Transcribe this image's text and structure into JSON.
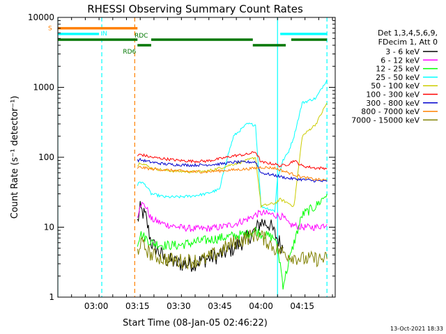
{
  "chart_data": {
    "type": "line",
    "title": "RHESSI Observing Summary Count Rates",
    "xlabel": "Start Time (08-Jan-05 02:46:22)",
    "ylabel": "Count Rate (s⁻¹ detector⁻¹)",
    "yscale": "log",
    "ylim": [
      1,
      10000
    ],
    "xlim": [
      "02:46",
      "04:27"
    ],
    "x_ticks": [
      "03:00",
      "03:15",
      "03:30",
      "03:45",
      "04:00",
      "04:15"
    ],
    "y_ticks": [
      "1",
      "10",
      "100",
      "1000",
      "10000"
    ],
    "grid": false,
    "footer": "13-Oct-2021 18:33",
    "legend": {
      "placement": "right",
      "header": [
        "Det 1,3,4,5,6,9,",
        "FDecim 1, Att 0"
      ],
      "entries": [
        {
          "name": "3 - 6 keV",
          "color": "#000000"
        },
        {
          "name": "6 - 12 keV",
          "color": "#ff00ff"
        },
        {
          "name": "12 - 25 keV",
          "color": "#00ff00"
        },
        {
          "name": "25 - 50 keV",
          "color": "#00ffff"
        },
        {
          "name": "50 - 100 keV",
          "color": "#cccc00"
        },
        {
          "name": "100 - 300 keV",
          "color": "#ff0000"
        },
        {
          "name": "300 - 800 keV",
          "color": "#0000cc"
        },
        {
          "name": "800 - 7000 keV",
          "color": "#ff8000"
        },
        {
          "name": "7000 - 15000 keV",
          "color": "#808000"
        }
      ]
    },
    "flag_bars": [
      {
        "label": "S",
        "color": "#ff8000",
        "value": 7000,
        "segments": [
          [
            "02:46",
            "03:15"
          ]
        ]
      },
      {
        "label": "N",
        "color": "#00ffff",
        "value": 5800,
        "segments": [
          [
            "02:46",
            "03:01"
          ],
          [
            "04:07",
            "04:24"
          ]
        ]
      },
      {
        "label": "RDC",
        "color": "#007700",
        "value": 4800,
        "segments": [
          [
            "02:46",
            "03:15"
          ],
          [
            "03:20",
            "03:57"
          ],
          [
            "04:11",
            "04:24"
          ]
        ]
      },
      {
        "label": "RD6",
        "color": "#007700",
        "value": 4000,
        "segments": [
          [
            "03:15",
            "03:20"
          ],
          [
            "03:57",
            "04:09"
          ]
        ]
      }
    ],
    "vlines": [
      {
        "x": "02:46",
        "color": "#00ffff",
        "style": "solid"
      },
      {
        "x": "03:02",
        "color": "#00ffff",
        "style": "dashed"
      },
      {
        "x": "03:14",
        "color": "#ff8000",
        "style": "dashed"
      },
      {
        "x": "04:06",
        "color": "#00ffff",
        "style": "solid"
      },
      {
        "x": "04:24",
        "color": "#00ffff",
        "style": "dashed"
      }
    ],
    "series": [
      {
        "name": "3 - 6 keV",
        "color": "#000000",
        "x": [
          "03:15",
          "03:16",
          "03:18",
          "03:20",
          "03:25",
          "03:30",
          "03:35",
          "03:40",
          "03:45",
          "03:50",
          "03:55",
          "03:58",
          "04:00",
          "04:03",
          "04:05",
          "04:08"
        ],
        "y": [
          12,
          18,
          14,
          6,
          3.5,
          3,
          3,
          3.5,
          4,
          5,
          7,
          9,
          12,
          11,
          8,
          5
        ]
      },
      {
        "name": "6 - 12 keV",
        "color": "#ff00ff",
        "x": [
          "03:15",
          "03:16",
          "03:18",
          "03:20",
          "03:25",
          "03:30",
          "03:35",
          "03:40",
          "03:45",
          "03:50",
          "03:55",
          "03:58",
          "04:00",
          "04:05",
          "04:08",
          "04:10",
          "04:15",
          "04:20",
          "04:24"
        ],
        "y": [
          14,
          22,
          20,
          13,
          11,
          10,
          9.5,
          9.5,
          10,
          11,
          13,
          15,
          16,
          15,
          14,
          11,
          10,
          10,
          11
        ]
      },
      {
        "name": "12 - 25 keV",
        "color": "#00ff00",
        "x": [
          "03:15",
          "03:16",
          "03:18",
          "03:20",
          "03:25",
          "03:30",
          "03:35",
          "03:40",
          "03:45",
          "03:50",
          "03:55",
          "03:58",
          "04:00",
          "04:05",
          "04:07",
          "04:08",
          "04:10",
          "04:12",
          "04:15",
          "04:20",
          "04:24"
        ],
        "y": [
          6,
          8,
          7,
          6,
          5.5,
          5.5,
          6,
          6.5,
          7,
          7.5,
          8,
          9,
          8,
          7,
          3,
          1.5,
          3,
          6,
          15,
          20,
          30
        ]
      },
      {
        "name": "25 - 50 keV",
        "color": "#00ffff",
        "x": [
          "03:15",
          "03:16",
          "03:18",
          "03:20",
          "03:25",
          "03:30",
          "03:35",
          "03:40",
          "03:45",
          "03:47",
          "03:50",
          "03:55",
          "03:58",
          "04:00",
          "04:05",
          "04:06",
          "04:08",
          "04:10",
          "04:12",
          "04:15",
          "04:20",
          "04:24"
        ],
        "y": [
          40,
          45,
          40,
          30,
          27,
          27,
          28,
          30,
          35,
          80,
          200,
          300,
          290,
          20,
          17,
          50,
          90,
          120,
          200,
          600,
          700,
          1300
        ]
      },
      {
        "name": "50 - 100 keV",
        "color": "#cccc00",
        "x": [
          "03:15",
          "03:16",
          "03:20",
          "03:25",
          "03:30",
          "03:35",
          "03:40",
          "03:45",
          "03:50",
          "03:55",
          "03:58",
          "04:00",
          "04:05",
          "04:07",
          "04:10",
          "04:12",
          "04:15",
          "04:20",
          "04:24"
        ],
        "y": [
          75,
          85,
          70,
          65,
          63,
          62,
          63,
          70,
          80,
          90,
          100,
          20,
          22,
          25,
          22,
          20,
          200,
          300,
          600
        ]
      },
      {
        "name": "100 - 300 keV",
        "color": "#ff0000",
        "x": [
          "03:15",
          "03:16",
          "03:20",
          "03:25",
          "03:30",
          "03:35",
          "03:40",
          "03:45",
          "03:50",
          "03:55",
          "03:58",
          "04:00",
          "04:05",
          "04:07",
          "04:10",
          "04:12",
          "04:15",
          "04:20",
          "04:24"
        ],
        "y": [
          105,
          110,
          100,
          95,
          90,
          88,
          88,
          95,
          105,
          110,
          120,
          85,
          80,
          75,
          80,
          90,
          75,
          70,
          70
        ]
      },
      {
        "name": "300 - 800 keV",
        "color": "#0000cc",
        "x": [
          "03:15",
          "03:16",
          "03:20",
          "03:25",
          "03:30",
          "03:35",
          "03:40",
          "03:45",
          "03:50",
          "03:55",
          "03:58",
          "04:00",
          "04:05",
          "04:10",
          "04:15",
          "04:20",
          "04:24"
        ],
        "y": [
          90,
          92,
          85,
          80,
          78,
          77,
          78,
          80,
          85,
          85,
          86,
          60,
          55,
          50,
          48,
          46,
          45
        ]
      },
      {
        "name": "800 - 7000 keV",
        "color": "#ff8000",
        "x": [
          "03:15",
          "03:16",
          "03:20",
          "03:25",
          "03:30",
          "03:35",
          "03:40",
          "03:45",
          "03:50",
          "03:55",
          "03:58",
          "04:00",
          "04:05",
          "04:10",
          "04:15",
          "04:20",
          "04:24"
        ],
        "y": [
          70,
          72,
          68,
          66,
          64,
          62,
          62,
          64,
          66,
          68,
          70,
          72,
          70,
          60,
          52,
          48,
          47
        ]
      },
      {
        "name": "7000 - 15000 keV",
        "color": "#808000",
        "x": [
          "03:15",
          "03:16",
          "03:18",
          "03:20",
          "03:25",
          "03:30",
          "03:35",
          "03:40",
          "03:45",
          "03:50",
          "03:55",
          "03:58",
          "04:00",
          "04:05",
          "04:10",
          "04:15",
          "04:20",
          "04:24"
        ],
        "y": [
          4.5,
          6,
          5,
          4,
          3.5,
          3.3,
          3.3,
          3.5,
          4.5,
          6,
          7,
          8,
          7.5,
          5,
          4,
          3.5,
          3.5,
          3.5
        ]
      }
    ]
  }
}
